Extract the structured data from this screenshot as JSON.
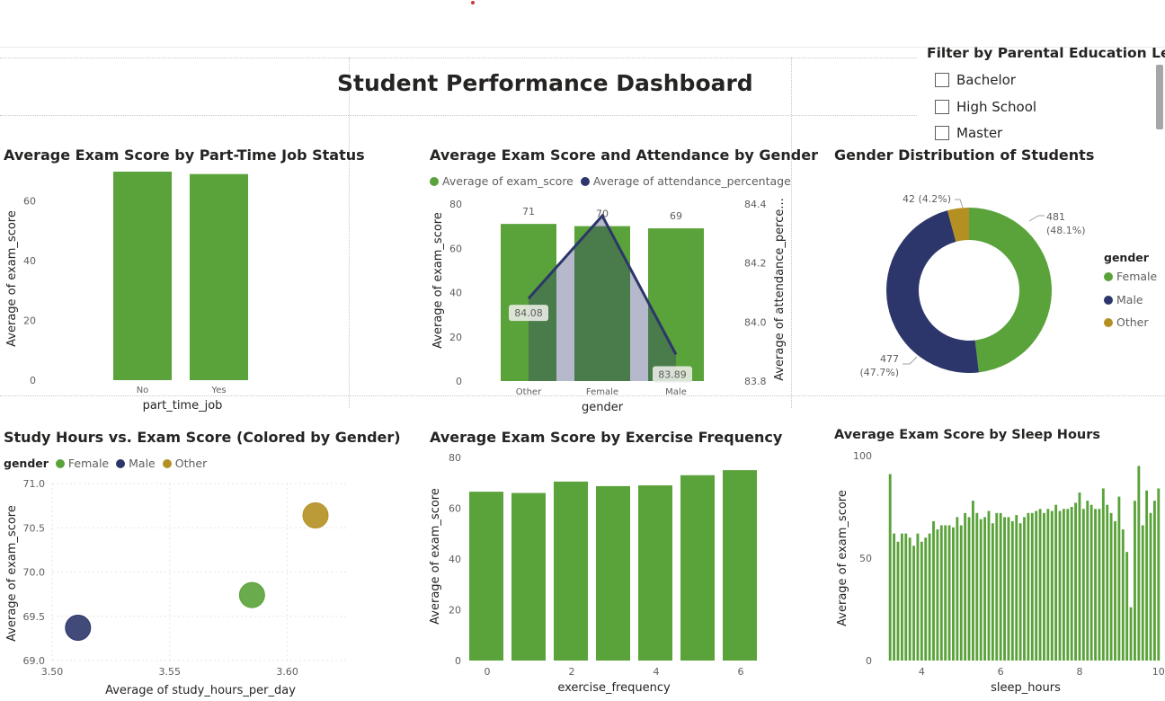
{
  "dashboard": {
    "title": "Student Performance Dashboard"
  },
  "colors": {
    "green": "#5aa23a",
    "navy": "#2c366a",
    "gold": "#b48f22",
    "grid": "#e6e6e6",
    "axis_text": "#605e5c"
  },
  "slicer": {
    "title": "Filter by Parental Education Level",
    "items": [
      "Bachelor",
      "High School",
      "Master"
    ]
  },
  "legends": {
    "gender_heading": "gender",
    "combo_series": [
      "Average of exam_score",
      "Average of attendance_percentage"
    ]
  },
  "chart_data": [
    {
      "id": "parttime",
      "type": "bar",
      "title": "Average Exam Score by Part-Time Job Status",
      "xlabel": "part_time_job",
      "ylabel": "Average of exam_score",
      "categories": [
        "No",
        "Yes"
      ],
      "values": [
        69.7,
        68.9
      ],
      "ylim": [
        0,
        70
      ],
      "yticks": [
        0,
        20,
        40,
        60
      ]
    },
    {
      "id": "combo",
      "type": "bar",
      "title": "Average Exam Score and Attendance by Gender",
      "xlabel": "gender",
      "ylabel": "Average of exam_score",
      "y2label": "Average of attendance_perce...",
      "categories": [
        "Other",
        "Female",
        "Male"
      ],
      "bar_values": [
        71,
        70,
        69
      ],
      "bar_labels": [
        "71",
        "70",
        "69"
      ],
      "line_values": [
        84.08,
        84.36,
        83.89
      ],
      "line_labels": [
        "84.08",
        "",
        "83.89"
      ],
      "ylim": [
        0,
        80
      ],
      "yticks": [
        0,
        20,
        40,
        60,
        80
      ],
      "y2lim": [
        83.8,
        84.4
      ],
      "y2ticks": [
        "83.8",
        "84.0",
        "84.2",
        "84.4"
      ]
    },
    {
      "id": "donut",
      "type": "pie",
      "title": "Gender Distribution of Students",
      "categories": [
        "Female",
        "Male",
        "Other"
      ],
      "values": [
        481,
        477,
        42
      ],
      "labels": [
        [
          "481",
          "(48.1%)"
        ],
        [
          "477",
          "(47.7%)"
        ],
        [
          "42 (4.2%)"
        ]
      ]
    },
    {
      "id": "scatter",
      "type": "scatter",
      "title": "Study Hours vs. Exam Score (Colored by Gender)",
      "xlabel": "Average of study_hours_per_day",
      "ylabel": "Average of exam_score",
      "series": [
        {
          "name": "Female",
          "x": 3.585,
          "y": 69.74
        },
        {
          "name": "Male",
          "x": 3.511,
          "y": 69.37
        },
        {
          "name": "Other",
          "x": 3.612,
          "y": 70.64
        }
      ],
      "xlim": [
        3.5,
        3.625
      ],
      "xticks": [
        "3.50",
        "3.55",
        "3.60"
      ],
      "ylim": [
        69.0,
        71.0
      ],
      "yticks": [
        "69.0",
        "69.5",
        "70.0",
        "70.5",
        "71.0"
      ]
    },
    {
      "id": "exercise",
      "type": "bar",
      "title": "Average Exam Score by Exercise Frequency",
      "xlabel": "exercise_frequency",
      "ylabel": "Average of exam_score",
      "categories": [
        0,
        1,
        2,
        3,
        4,
        5,
        6
      ],
      "values": [
        66.5,
        66,
        70.5,
        68.7,
        69,
        73,
        75
      ],
      "ylim": [
        0,
        80
      ],
      "yticks": [
        0,
        20,
        40,
        60,
        80
      ],
      "xticks": [
        "0",
        "2",
        "4",
        "6"
      ]
    },
    {
      "id": "sleep",
      "type": "bar",
      "title": "Average Exam Score by Sleep Hours",
      "xlabel": "sleep_hours",
      "ylabel": "Average of exam_score",
      "x": [
        3.2,
        3.3,
        3.4,
        3.5,
        3.6,
        3.7,
        3.8,
        3.9,
        4.0,
        4.1,
        4.2,
        4.3,
        4.4,
        4.5,
        4.6,
        4.7,
        4.8,
        4.9,
        5.0,
        5.1,
        5.2,
        5.3,
        5.4,
        5.5,
        5.6,
        5.7,
        5.8,
        5.9,
        6.0,
        6.1,
        6.2,
        6.3,
        6.4,
        6.5,
        6.6,
        6.7,
        6.8,
        6.9,
        7.0,
        7.1,
        7.2,
        7.3,
        7.4,
        7.5,
        7.6,
        7.7,
        7.8,
        7.9,
        8.0,
        8.1,
        8.2,
        8.3,
        8.4,
        8.5,
        8.6,
        8.7,
        8.8,
        8.9,
        9.0,
        9.1,
        9.2,
        9.3,
        9.4,
        9.5,
        9.6,
        9.7,
        9.8,
        9.9,
        10.0
      ],
      "values": [
        91,
        62,
        58,
        62,
        62,
        60,
        56,
        62,
        58,
        60,
        62,
        68,
        64,
        66,
        66,
        66,
        65,
        70,
        66,
        72,
        70,
        78,
        72,
        69,
        70,
        73,
        67,
        72,
        72,
        70,
        70,
        68,
        71,
        67,
        70,
        72,
        72,
        73,
        74,
        72,
        74,
        73,
        76,
        73,
        74,
        74,
        75,
        77,
        82,
        74,
        78,
        76,
        74,
        74,
        84,
        76,
        72,
        68,
        80,
        64,
        53,
        26,
        78,
        95,
        66,
        83,
        72,
        78,
        84
      ],
      "ylim": [
        0,
        100
      ],
      "yticks": [
        0,
        50,
        100
      ],
      "xticks": [
        "4",
        "6",
        "8",
        "10"
      ]
    }
  ]
}
